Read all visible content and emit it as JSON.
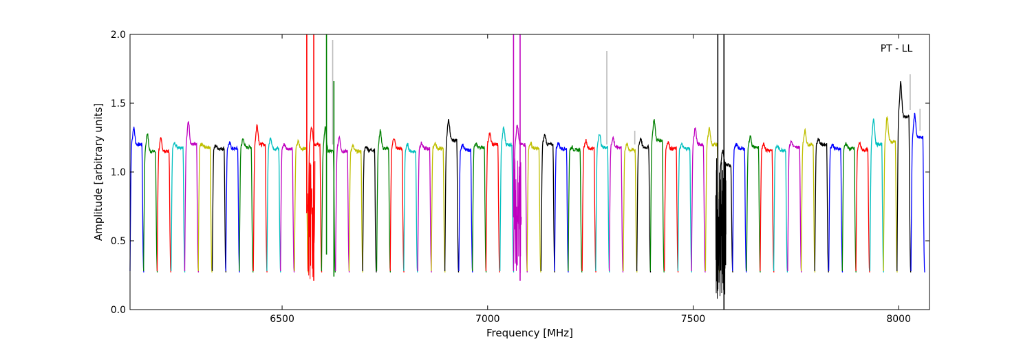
{
  "chart_data": {
    "type": "line",
    "title": "",
    "annotation": "PT - LL",
    "xlabel": "Frequency [MHz]",
    "ylabel": "Amplitude [arbitrary units]",
    "xlim": [
      6130,
      8075
    ],
    "ylim": [
      0.0,
      2.0
    ],
    "x_ticks": [
      6500,
      7000,
      7500,
      8000
    ],
    "x_tick_labels": [
      "6500",
      "7000",
      "7500",
      "8000"
    ],
    "y_ticks": [
      0.0,
      0.5,
      1.0,
      1.5,
      2.0
    ],
    "y_tick_labels": [
      "0.0",
      "0.5",
      "1.0",
      "1.5",
      "2.0"
    ],
    "grid": false,
    "legend": "none",
    "series_colors": [
      "#0000ff",
      "#008000",
      "#ff0000",
      "#00bfbf",
      "#bf00bf",
      "#bfbf00",
      "#000000"
    ],
    "background_trace_color": "#bbbbbb",
    "channel_spacing_mhz": 33.3,
    "channels": [
      {
        "start": 6130,
        "color": "#0000ff",
        "level": 1.2,
        "peak": 1.32
      },
      {
        "start": 6163,
        "color": "#008000",
        "level": 1.15,
        "peak": 1.28
      },
      {
        "start": 6196,
        "color": "#ff0000",
        "level": 1.15,
        "peak": 1.24
      },
      {
        "start": 6230,
        "color": "#00bfbf",
        "level": 1.18,
        "peak": 1.21
      },
      {
        "start": 6263,
        "color": "#bf00bf",
        "level": 1.2,
        "peak": 1.37
      },
      {
        "start": 6296,
        "color": "#bfbf00",
        "level": 1.18,
        "peak": 1.2
      },
      {
        "start": 6330,
        "color": "#000000",
        "level": 1.17,
        "peak": 1.19
      },
      {
        "start": 6363,
        "color": "#0000ff",
        "level": 1.17,
        "peak": 1.21
      },
      {
        "start": 6396,
        "color": "#008000",
        "level": 1.18,
        "peak": 1.24
      },
      {
        "start": 6430,
        "color": "#ff0000",
        "level": 1.2,
        "peak": 1.34
      },
      {
        "start": 6463,
        "color": "#00bfbf",
        "level": 1.17,
        "peak": 1.25
      },
      {
        "start": 6496,
        "color": "#bf00bf",
        "level": 1.17,
        "peak": 1.2
      },
      {
        "start": 6530,
        "color": "#bfbf00",
        "level": 1.17,
        "peak": 1.22
      },
      {
        "start": 6563,
        "color": "#ff0000",
        "level": 1.2,
        "peak": 1.33
      },
      {
        "start": 6596,
        "color": "#008000",
        "level": 1.15,
        "peak": 1.33
      },
      {
        "start": 6630,
        "color": "#bf00bf",
        "level": 1.15,
        "peak": 1.26
      },
      {
        "start": 6663,
        "color": "#bfbf00",
        "level": 1.15,
        "peak": 1.19
      },
      {
        "start": 6696,
        "color": "#000000",
        "level": 1.16,
        "peak": 1.18
      },
      {
        "start": 6730,
        "color": "#008000",
        "level": 1.17,
        "peak": 1.3
      },
      {
        "start": 6763,
        "color": "#ff0000",
        "level": 1.17,
        "peak": 1.25
      },
      {
        "start": 6796,
        "color": "#00bfbf",
        "level": 1.15,
        "peak": 1.2
      },
      {
        "start": 6830,
        "color": "#bf00bf",
        "level": 1.17,
        "peak": 1.21
      },
      {
        "start": 6863,
        "color": "#bfbf00",
        "level": 1.17,
        "peak": 1.21
      },
      {
        "start": 6896,
        "color": "#000000",
        "level": 1.23,
        "peak": 1.38
      },
      {
        "start": 6930,
        "color": "#0000ff",
        "level": 1.16,
        "peak": 1.2
      },
      {
        "start": 6963,
        "color": "#008000",
        "level": 1.18,
        "peak": 1.2
      },
      {
        "start": 6996,
        "color": "#ff0000",
        "level": 1.2,
        "peak": 1.28
      },
      {
        "start": 7030,
        "color": "#00bfbf",
        "level": 1.2,
        "peak": 1.32
      },
      {
        "start": 7063,
        "color": "#bf00bf",
        "level": 1.2,
        "peak": 1.34
      },
      {
        "start": 7096,
        "color": "#bfbf00",
        "level": 1.17,
        "peak": 1.21
      },
      {
        "start": 7130,
        "color": "#000000",
        "level": 1.2,
        "peak": 1.27
      },
      {
        "start": 7163,
        "color": "#0000ff",
        "level": 1.17,
        "peak": 1.21
      },
      {
        "start": 7196,
        "color": "#008000",
        "level": 1.16,
        "peak": 1.18
      },
      {
        "start": 7230,
        "color": "#ff0000",
        "level": 1.17,
        "peak": 1.23
      },
      {
        "start": 7263,
        "color": "#00bfbf",
        "level": 1.18,
        "peak": 1.28
      },
      {
        "start": 7296,
        "color": "#bf00bf",
        "level": 1.18,
        "peak": 1.25
      },
      {
        "start": 7330,
        "color": "#bfbf00",
        "level": 1.16,
        "peak": 1.2
      },
      {
        "start": 7363,
        "color": "#000000",
        "level": 1.18,
        "peak": 1.24
      },
      {
        "start": 7396,
        "color": "#008000",
        "level": 1.23,
        "peak": 1.38
      },
      {
        "start": 7430,
        "color": "#ff0000",
        "level": 1.17,
        "peak": 1.22
      },
      {
        "start": 7463,
        "color": "#00bfbf",
        "level": 1.17,
        "peak": 1.2
      },
      {
        "start": 7496,
        "color": "#bf00bf",
        "level": 1.2,
        "peak": 1.32
      },
      {
        "start": 7530,
        "color": "#bfbf00",
        "level": 1.2,
        "peak": 1.32
      },
      {
        "start": 7563,
        "color": "#000000",
        "level": 1.05,
        "peak": 1.15
      },
      {
        "start": 7596,
        "color": "#0000ff",
        "level": 1.17,
        "peak": 1.2
      },
      {
        "start": 7630,
        "color": "#008000",
        "level": 1.18,
        "peak": 1.26
      },
      {
        "start": 7663,
        "color": "#ff0000",
        "level": 1.16,
        "peak": 1.2
      },
      {
        "start": 7696,
        "color": "#00bfbf",
        "level": 1.16,
        "peak": 1.19
      },
      {
        "start": 7730,
        "color": "#bf00bf",
        "level": 1.18,
        "peak": 1.22
      },
      {
        "start": 7763,
        "color": "#bfbf00",
        "level": 1.2,
        "peak": 1.3
      },
      {
        "start": 7796,
        "color": "#000000",
        "level": 1.2,
        "peak": 1.24
      },
      {
        "start": 7830,
        "color": "#0000ff",
        "level": 1.17,
        "peak": 1.2
      },
      {
        "start": 7863,
        "color": "#008000",
        "level": 1.17,
        "peak": 1.21
      },
      {
        "start": 7896,
        "color": "#ff0000",
        "level": 1.16,
        "peak": 1.21
      },
      {
        "start": 7930,
        "color": "#00bfbf",
        "level": 1.2,
        "peak": 1.39
      },
      {
        "start": 7963,
        "color": "#bfbf00",
        "level": 1.22,
        "peak": 1.4
      },
      {
        "start": 7996,
        "color": "#000000",
        "level": 1.4,
        "peak": 1.65
      },
      {
        "start": 8030,
        "color": "#0000ff",
        "level": 1.25,
        "peak": 1.42
      }
    ],
    "spikes": [
      {
        "x": 6560,
        "color": "#ff0000",
        "y_low": 0.7,
        "y_high": 2.0
      },
      {
        "x": 6577,
        "color": "#ff0000",
        "y_low": 0.21,
        "y_high": 2.0
      },
      {
        "x": 6608,
        "color": "#008000",
        "y_low": 0.4,
        "y_high": 2.0
      },
      {
        "x": 6623,
        "color": "#bbbbbb",
        "y_low": 1.2,
        "y_high": 1.96
      },
      {
        "x": 6626,
        "color": "#008000",
        "y_low": 0.24,
        "y_high": 1.66
      },
      {
        "x": 7063,
        "color": "#bf00bf",
        "y_low": 0.67,
        "y_high": 2.0
      },
      {
        "x": 7079,
        "color": "#bf00bf",
        "y_low": 0.21,
        "y_high": 2.0
      },
      {
        "x": 7290,
        "color": "#bbbbbb",
        "y_low": 1.2,
        "y_high": 1.88
      },
      {
        "x": 7358,
        "color": "#bbbbbb",
        "y_low": 1.2,
        "y_high": 1.3
      },
      {
        "x": 7560,
        "color": "#000000",
        "y_low": 0.15,
        "y_high": 2.0
      },
      {
        "x": 7575,
        "color": "#000000",
        "y_low": 0.0,
        "y_high": 2.0
      },
      {
        "x": 8028,
        "color": "#bbbbbb",
        "y_low": 1.45,
        "y_high": 1.71
      },
      {
        "x": 8052,
        "color": "#bbbbbb",
        "y_low": 1.3,
        "y_high": 1.46
      }
    ]
  }
}
